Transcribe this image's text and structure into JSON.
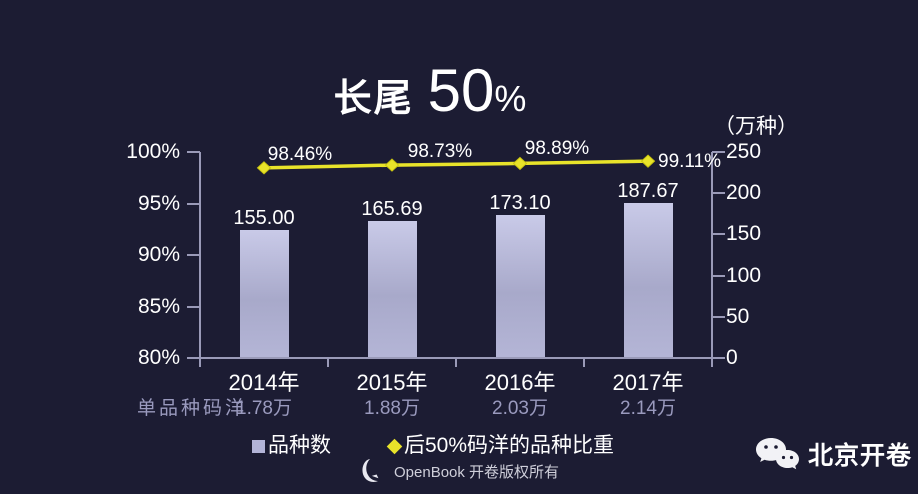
{
  "title": {
    "prefix": "长尾",
    "big": "50",
    "suffix": "%"
  },
  "chart_data": {
    "type": "bar",
    "subtype": "combo-bar-line-dual-axis",
    "title": "长尾 50%",
    "categories": [
      "2014年",
      "2015年",
      "2016年",
      "2017年"
    ],
    "series": [
      {
        "name": "品种数",
        "type": "bar",
        "axis": "right",
        "values": [
          155.0,
          165.69,
          173.1,
          187.67
        ],
        "labels": [
          "155.00",
          "165.69",
          "173.10",
          "187.67"
        ]
      },
      {
        "name": "后50%码洋的品种比重",
        "type": "line",
        "axis": "left",
        "values": [
          98.46,
          98.73,
          98.89,
          99.11
        ],
        "labels": [
          "98.46%",
          "98.73%",
          "98.89%",
          "99.11%"
        ]
      }
    ],
    "left_axis": {
      "min": 80,
      "max": 100,
      "tick_values": [
        100,
        95,
        90,
        85,
        80
      ],
      "tick_labels": [
        "100%",
        "95%",
        "90%",
        "85%",
        "80%"
      ]
    },
    "right_axis": {
      "min": 0,
      "max": 250,
      "tick_values": [
        250,
        200,
        150,
        100,
        50,
        0
      ],
      "tick_labels": [
        "250",
        "200",
        "150",
        "100",
        "50",
        "0"
      ],
      "unit": "（万种）"
    },
    "grid": false,
    "legend_position": "bottom"
  },
  "sub_row": {
    "label": "单品种码洋",
    "values": [
      "1.78万",
      "1.88万",
      "2.03万",
      "2.14万"
    ]
  },
  "legend": {
    "bar_label": "品种数",
    "line_label": "后50%码洋的品种比重"
  },
  "footer": {
    "text": "OpenBook 开卷版权所有",
    "logo": "openbook-crescent-logo"
  },
  "brand": {
    "name": "北京开卷",
    "icon": "wechat-icon"
  },
  "colors": {
    "background": "#1c1c33",
    "bar_top": "#c9cae8",
    "bar_bottom": "#a8a9ca",
    "line": "#e8e32a",
    "axis": "#9a9ab8",
    "dim_text": "#9a9abe",
    "text": "#ffffff"
  }
}
